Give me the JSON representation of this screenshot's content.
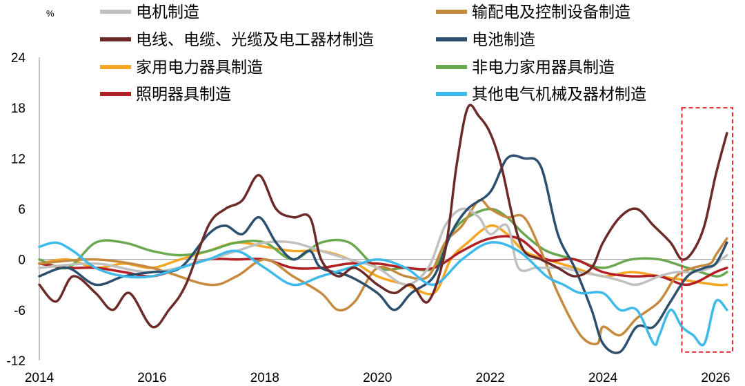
{
  "chart_data": {
    "type": "line",
    "unit_label": "%",
    "ylim": [
      -12,
      24
    ],
    "yticks": [
      -12,
      -6,
      0,
      6,
      12,
      18,
      24
    ],
    "xlim": [
      2014,
      2026.3
    ],
    "xticks": [
      2014,
      2016,
      2018,
      2020,
      2022,
      2024,
      2026
    ],
    "legend_position": "top",
    "highlight_box": {
      "x_range": [
        2025.4,
        2026.3
      ],
      "y_range": [
        -11,
        18
      ],
      "color": "#e8262b"
    },
    "series": [
      {
        "name": "电机制造",
        "color": "#c0c0c0",
        "x": [
          2014,
          2015,
          2016,
          2017,
          2017.5,
          2018,
          2018.5,
          2019,
          2019.5,
          2020,
          2020.5,
          2020.9,
          2021.2,
          2021.5,
          2021.8,
          2022,
          2022.3,
          2022.5,
          2022.8,
          2023,
          2023.3,
          2023.6,
          2024,
          2024.3,
          2024.6,
          2025,
          2025.3,
          2025.6,
          2025.9,
          2026.1,
          2026.2
        ],
        "y": [
          -1,
          -0.5,
          -1.5,
          0,
          1,
          2,
          2,
          1,
          0,
          -1,
          -3,
          -1,
          4,
          6,
          5,
          3,
          4,
          -1,
          -1,
          -1,
          -1,
          -1.5,
          -2,
          -2.5,
          -3,
          -2,
          -1.5,
          -1.5,
          -1,
          0,
          0.5
        ]
      },
      {
        "name": "输配电及控制设备制造",
        "color": "#c68a3f",
        "x": [
          2014,
          2015,
          2016,
          2017,
          2017.5,
          2018,
          2018.5,
          2019,
          2019.3,
          2019.6,
          2020,
          2020.5,
          2020.9,
          2021.2,
          2021.5,
          2021.8,
          2022,
          2022.3,
          2022.6,
          2022.9,
          2023.2,
          2023.6,
          2023.9,
          2024,
          2024.3,
          2024.6,
          2025,
          2025.3,
          2025.6,
          2025.9,
          2026,
          2026.2
        ],
        "y": [
          -0.5,
          0,
          -1,
          -3,
          -2,
          0,
          -2,
          -4,
          -6,
          -5,
          -1,
          -2,
          -2,
          2,
          4,
          7,
          6,
          5,
          5,
          1,
          -4,
          -9,
          -10,
          -8,
          -9,
          -7,
          -5,
          -2,
          -1,
          -0.5,
          0.5,
          2.5
        ]
      },
      {
        "name": "电线、电缆、光缆及电工器材制造",
        "color": "#6b2a27",
        "x": [
          2014,
          2014.3,
          2014.6,
          2015,
          2015.3,
          2015.6,
          2016,
          2016.3,
          2016.6,
          2017,
          2017.3,
          2017.6,
          2017.9,
          2018.2,
          2018.5,
          2018.8,
          2019,
          2019.3,
          2019.6,
          2020,
          2020.3,
          2020.6,
          2020.9,
          2021.2,
          2021.4,
          2021.6,
          2021.8,
          2022,
          2022.2,
          2022.4,
          2022.6,
          2022.9,
          2023.2,
          2023.5,
          2023.8,
          2024,
          2024.3,
          2024.6,
          2024.9,
          2025.2,
          2025.4,
          2025.6,
          2025.8,
          2026,
          2026.2
        ],
        "y": [
          -3,
          -5,
          -2,
          -4,
          -6,
          -4,
          -8,
          -6,
          -3,
          4,
          6,
          7,
          10,
          6,
          5,
          5,
          0,
          -2,
          -1,
          -3,
          -4,
          -3,
          -5,
          1,
          11,
          18,
          17,
          15,
          11,
          5,
          1,
          0,
          -1,
          -2,
          -1,
          2,
          5,
          6,
          4,
          2,
          0,
          1,
          4,
          10,
          15
        ]
      },
      {
        "name": "电池制造",
        "color": "#2c4f6e",
        "x": [
          2014,
          2014.5,
          2015,
          2015.5,
          2016,
          2016.5,
          2017,
          2017.3,
          2017.6,
          2017.9,
          2018.2,
          2018.5,
          2018.8,
          2019,
          2019.5,
          2020,
          2020.3,
          2020.6,
          2021,
          2021.3,
          2021.6,
          2022,
          2022.3,
          2022.6,
          2022.9,
          2023.2,
          2023.5,
          2023.8,
          2024,
          2024.3,
          2024.6,
          2024.9,
          2025.2,
          2025.5,
          2025.8,
          2026,
          2026.2
        ],
        "y": [
          -2,
          -1,
          -3,
          -2,
          -1.5,
          -1,
          3,
          4,
          3,
          5,
          2,
          0,
          1,
          -1,
          -2,
          -4,
          -6,
          -4,
          -2,
          3,
          6,
          8,
          12,
          12,
          11,
          3,
          -1,
          -6,
          -10,
          -11,
          -8,
          -8,
          -5,
          -2,
          -1,
          -0.5,
          2
        ]
      },
      {
        "name": "家用电力器具制造",
        "color": "#f5a623",
        "x": [
          2014,
          2014.5,
          2015,
          2015.5,
          2016,
          2016.5,
          2017,
          2017.5,
          2018,
          2018.5,
          2019,
          2019.5,
          2020,
          2020.5,
          2021,
          2021.3,
          2021.6,
          2022,
          2022.3,
          2022.6,
          2023,
          2023.5,
          2024,
          2024.5,
          2025,
          2025.5,
          2026,
          2026.2
        ],
        "y": [
          -0.5,
          0,
          -1,
          -0.5,
          -1,
          0,
          1,
          2,
          1.5,
          1,
          1,
          0,
          -2,
          -3,
          -4,
          0,
          2,
          4,
          3,
          1,
          0,
          -1,
          -2,
          -1.5,
          -2,
          -2.5,
          -3,
          -3
        ]
      },
      {
        "name": "非电力家用器具制造",
        "color": "#6aa84f",
        "x": [
          2014,
          2014.5,
          2015,
          2015.5,
          2016,
          2016.5,
          2017,
          2017.5,
          2018,
          2018.5,
          2019,
          2019.5,
          2020,
          2020.5,
          2021,
          2021.3,
          2021.6,
          2022,
          2022.3,
          2022.6,
          2023,
          2023.5,
          2024,
          2024.5,
          2025,
          2025.5,
          2026,
          2026.2
        ],
        "y": [
          0,
          -1,
          2,
          2,
          1,
          0.5,
          1,
          2,
          2,
          0,
          2,
          2,
          -1,
          -1,
          -1,
          3,
          5,
          6,
          5,
          3,
          1,
          0,
          -1,
          0,
          0,
          -1,
          -2,
          -1.5
        ]
      },
      {
        "name": "照明器具制造",
        "color": "#b11f24",
        "x": [
          2014,
          2014.5,
          2015,
          2015.5,
          2016,
          2016.5,
          2017,
          2017.5,
          2018,
          2018.5,
          2019,
          2019.5,
          2020,
          2020.5,
          2021,
          2021.5,
          2022,
          2022.5,
          2023,
          2023.5,
          2024,
          2024.5,
          2025,
          2025.5,
          2026,
          2026.2
        ],
        "y": [
          -0.5,
          -1,
          -1,
          -1.5,
          -2,
          -1,
          0,
          0,
          0,
          -1,
          -1,
          -0.5,
          -0.5,
          -1,
          -1,
          1,
          2.5,
          2.5,
          0,
          0,
          -1.5,
          -2,
          -2,
          -3,
          -1.5,
          -1
        ]
      },
      {
        "name": "其他电气机械及器材制造",
        "color": "#3db9ea",
        "x": [
          2014,
          2014.3,
          2014.6,
          2015,
          2015.5,
          2016,
          2016.5,
          2017,
          2017.5,
          2018,
          2018.5,
          2019,
          2019.5,
          2020,
          2020.5,
          2021,
          2021.5,
          2022,
          2022.5,
          2023,
          2023.3,
          2023.6,
          2024,
          2024.3,
          2024.6,
          2024.9,
          2025,
          2025.2,
          2025.4,
          2025.6,
          2025.8,
          2026,
          2026.2
        ],
        "y": [
          1.5,
          2,
          1,
          -1,
          -2,
          -2,
          -1,
          0,
          1,
          -1,
          -3,
          -2,
          -1,
          0,
          -1,
          -3,
          0,
          2,
          1,
          -2,
          -3,
          -4,
          -4,
          -6,
          -6,
          -10,
          -9,
          -6,
          -8,
          -9,
          -10,
          -5,
          -6
        ]
      }
    ]
  }
}
